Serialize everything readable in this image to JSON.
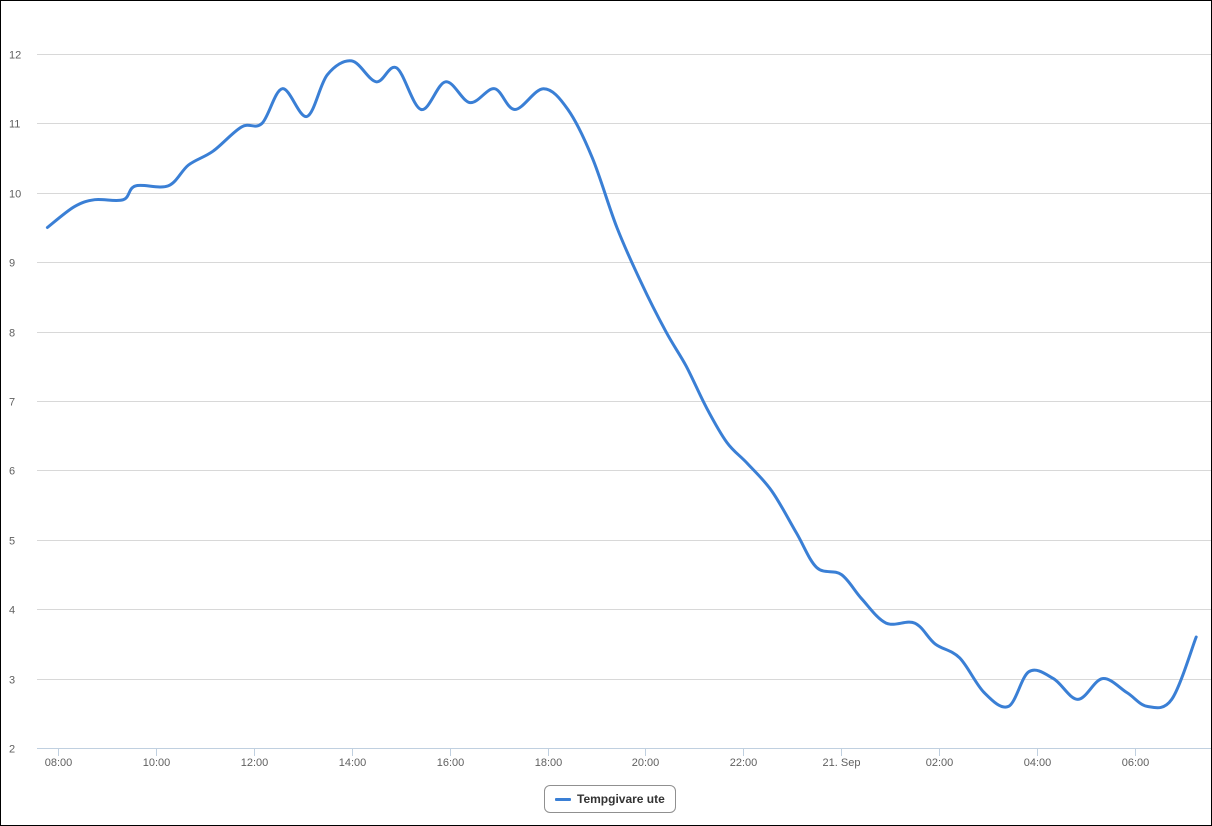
{
  "chart_data": {
    "type": "line",
    "title": "",
    "xlabel": "",
    "ylabel": "",
    "y_ticks": [
      2,
      3,
      4,
      5,
      6,
      7,
      8,
      9,
      10,
      11,
      12
    ],
    "ylim": [
      2,
      12
    ],
    "xlim": [
      "2019-09-20 07:45",
      "2019-09-21 07:20"
    ],
    "x_ticks": [
      {
        "time": "2019-09-20 08:00",
        "label": "08:00"
      },
      {
        "time": "2019-09-20 10:00",
        "label": "10:00"
      },
      {
        "time": "2019-09-20 12:00",
        "label": "12:00"
      },
      {
        "time": "2019-09-20 14:00",
        "label": "14:00"
      },
      {
        "time": "2019-09-20 16:00",
        "label": "16:00"
      },
      {
        "time": "2019-09-20 18:00",
        "label": "18:00"
      },
      {
        "time": "2019-09-20 20:00",
        "label": "20:00"
      },
      {
        "time": "2019-09-20 22:00",
        "label": "22:00"
      },
      {
        "time": "2019-09-21 00:00",
        "label": "21. Sep"
      },
      {
        "time": "2019-09-21 02:00",
        "label": "02:00"
      },
      {
        "time": "2019-09-21 04:00",
        "label": "04:00"
      },
      {
        "time": "2019-09-21 06:00",
        "label": "06:00"
      }
    ],
    "grid": true,
    "legend": "bottom-center",
    "series": [
      {
        "name": "Tempgivare ute",
        "color": "#3a7fd5",
        "points": [
          [
            "2019-09-20 07:47",
            9.5
          ],
          [
            "2019-09-20 08:20",
            9.8
          ],
          [
            "2019-09-20 08:45",
            9.9
          ],
          [
            "2019-09-20 09:20",
            9.9
          ],
          [
            "2019-09-20 09:35",
            10.1
          ],
          [
            "2019-09-20 10:15",
            10.1
          ],
          [
            "2019-09-20 10:40",
            10.4
          ],
          [
            "2019-09-20 11:10",
            10.6
          ],
          [
            "2019-09-20 11:45",
            10.95
          ],
          [
            "2019-09-20 12:10",
            11.0
          ],
          [
            "2019-09-20 12:35",
            11.5
          ],
          [
            "2019-09-20 13:05",
            11.1
          ],
          [
            "2019-09-20 13:30",
            11.7
          ],
          [
            "2019-09-20 14:00",
            11.9
          ],
          [
            "2019-09-20 14:30",
            11.6
          ],
          [
            "2019-09-20 14:55",
            11.8
          ],
          [
            "2019-09-20 15:25",
            11.2
          ],
          [
            "2019-09-20 15:55",
            11.6
          ],
          [
            "2019-09-20 16:25",
            11.3
          ],
          [
            "2019-09-20 16:55",
            11.5
          ],
          [
            "2019-09-20 17:20",
            11.2
          ],
          [
            "2019-09-20 17:55",
            11.5
          ],
          [
            "2019-09-20 18:25",
            11.2
          ],
          [
            "2019-09-20 18:55",
            10.5
          ],
          [
            "2019-09-20 19:25",
            9.5
          ],
          [
            "2019-09-20 19:55",
            8.7
          ],
          [
            "2019-09-20 20:25",
            8.0
          ],
          [
            "2019-09-20 20:50",
            7.5
          ],
          [
            "2019-09-20 21:15",
            6.9
          ],
          [
            "2019-09-20 21:40",
            6.4
          ],
          [
            "2019-09-20 22:05",
            6.1
          ],
          [
            "2019-09-20 22:35",
            5.7
          ],
          [
            "2019-09-20 23:05",
            5.1
          ],
          [
            "2019-09-20 23:30",
            4.6
          ],
          [
            "2019-09-21 00:00",
            4.5
          ],
          [
            "2019-09-21 00:25",
            4.15
          ],
          [
            "2019-09-21 00:55",
            3.8
          ],
          [
            "2019-09-21 01:30",
            3.8
          ],
          [
            "2019-09-21 01:55",
            3.5
          ],
          [
            "2019-09-21 02:25",
            3.3
          ],
          [
            "2019-09-21 02:55",
            2.8
          ],
          [
            "2019-09-21 03:25",
            2.6
          ],
          [
            "2019-09-21 03:50",
            3.1
          ],
          [
            "2019-09-21 04:20",
            3.0
          ],
          [
            "2019-09-21 04:50",
            2.7
          ],
          [
            "2019-09-21 05:20",
            3.0
          ],
          [
            "2019-09-21 05:50",
            2.8
          ],
          [
            "2019-09-21 06:15",
            2.6
          ],
          [
            "2019-09-21 06:45",
            2.7
          ],
          [
            "2019-09-21 07:15",
            3.6
          ]
        ]
      }
    ]
  }
}
